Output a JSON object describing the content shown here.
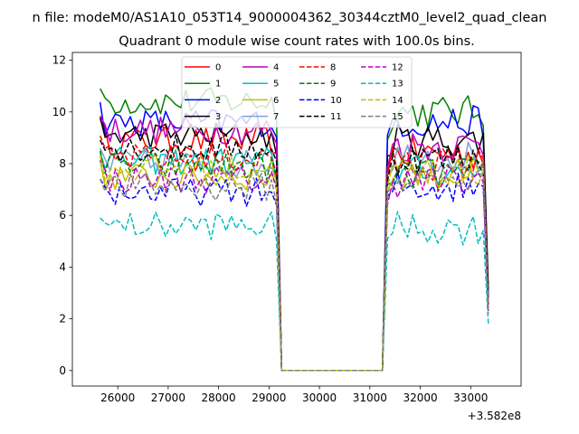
{
  "chart_data": {
    "type": "line",
    "suptitle": "n file: modeM0/AS1A10_053T14_9000004362_30344cztM0_level2_quad_clean",
    "title": "Quadrant 0 module wise count rates with 100.0s bins.",
    "xlabel": "",
    "ylabel": "",
    "offset_label": "+3.582e8",
    "xlim": [
      25100,
      34000
    ],
    "ylim": [
      -0.6,
      12.3
    ],
    "xticks": [
      26000,
      27000,
      28000,
      29000,
      30000,
      31000,
      32000,
      33000
    ],
    "yticks": [
      0,
      2,
      4,
      6,
      8,
      10,
      12
    ],
    "grid": false,
    "legend": {
      "placement": "top-center",
      "columns": 4
    },
    "x_start": 25650,
    "bin_width": 100,
    "gap_start": 29250,
    "gap_end": 31250,
    "x_end": 33350,
    "series": [
      {
        "name": "0",
        "color": "#ff0000",
        "dash": "solid",
        "level_pre": 8.9,
        "level_post": 8.4,
        "end_value": 2.6
      },
      {
        "name": "1",
        "color": "#008000",
        "dash": "solid",
        "level_pre": 10.4,
        "level_post": 10.0,
        "end_value": 3.0
      },
      {
        "name": "2",
        "color": "#0000ff",
        "dash": "solid",
        "level_pre": 9.6,
        "level_post": 9.6,
        "end_value": 2.9
      },
      {
        "name": "3",
        "color": "#000000",
        "dash": "solid",
        "level_pre": 9.1,
        "level_post": 8.9,
        "end_value": 3.2
      },
      {
        "name": "4",
        "color": "#bf00bf",
        "dash": "solid",
        "level_pre": 9.3,
        "level_post": 8.7,
        "end_value": 2.6
      },
      {
        "name": "5",
        "color": "#00bfbf",
        "dash": "solid",
        "level_pre": 8.1,
        "level_post": 7.7,
        "end_value": 2.4
      },
      {
        "name": "6",
        "color": "#bfbf00",
        "dash": "solid",
        "level_pre": 7.5,
        "level_post": 7.6,
        "end_value": 2.3
      },
      {
        "name": "7",
        "color": "#7fa0d8",
        "dash": "solid",
        "level_pre": 8.0,
        "level_post": 8.3,
        "end_value": 2.5
      },
      {
        "name": "8",
        "color": "#ff0000",
        "dash": "dashed",
        "level_pre": 8.2,
        "level_post": 8.0,
        "end_value": 2.5
      },
      {
        "name": "9",
        "color": "#008000",
        "dash": "dashed",
        "level_pre": 7.9,
        "level_post": 7.6,
        "end_value": 2.4
      },
      {
        "name": "10",
        "color": "#0000ff",
        "dash": "dashed",
        "level_pre": 6.9,
        "level_post": 7.1,
        "end_value": 2.2
      },
      {
        "name": "11",
        "color": "#000000",
        "dash": "dashed",
        "level_pre": 8.6,
        "level_post": 8.2,
        "end_value": 2.6
      },
      {
        "name": "12",
        "color": "#bf00bf",
        "dash": "dashed",
        "level_pre": 7.4,
        "level_post": 7.3,
        "end_value": 2.3
      },
      {
        "name": "13",
        "color": "#00bfbf",
        "dash": "dashed",
        "level_pre": 5.6,
        "level_post": 5.5,
        "end_value": 1.8
      },
      {
        "name": "14",
        "color": "#bfbf00",
        "dash": "dashed",
        "level_pre": 7.8,
        "level_post": 7.7,
        "end_value": 2.4
      },
      {
        "name": "15",
        "color": "#808080",
        "dash": "dashed",
        "level_pre": 7.1,
        "level_post": 7.4,
        "end_value": 2.2
      }
    ]
  }
}
